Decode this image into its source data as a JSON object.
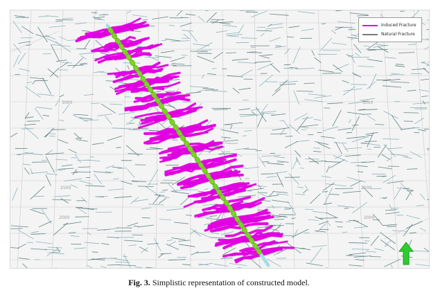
{
  "legend": {
    "items": [
      {
        "label": "Induced Fracture",
        "color": "#e000e0"
      },
      {
        "label": "Natural Fracture",
        "color": "#7a7a7a"
      }
    ]
  },
  "scale_labels": {
    "left_top": "3000",
    "right_top": "3000",
    "left_mid": "2500",
    "right_mid": "2500",
    "left_low": "2000",
    "right_low": "2000"
  },
  "colors": {
    "induced_fracture": "#e000e0",
    "natural_fracture_dark": "#4a7070",
    "natural_fracture_light": "#7fa8b0",
    "wellbore": "#a8dce8",
    "perforation_cluster": "#7ed321",
    "grid_line": "#c9c9c9",
    "north_arrow": "#2ecc2e"
  },
  "icons": {
    "north_arrow": "north-arrow-icon"
  },
  "caption": {
    "label": "Fig. 3.",
    "text": "Simplistic representation of constructed model."
  }
}
